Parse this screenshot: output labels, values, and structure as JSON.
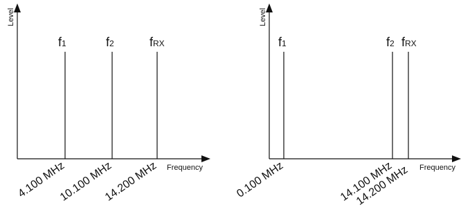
{
  "diagrams": [
    {
      "ylabel": "Level",
      "xlabel": "Frequency",
      "signals": [
        {
          "main": "f",
          "sub": "1"
        },
        {
          "main": "f",
          "sub": "2"
        },
        {
          "main": "f",
          "sub": "RX"
        }
      ],
      "ticks": [
        "4.100 MHz",
        "10.100 MHz",
        "14.200 MHz"
      ]
    },
    {
      "ylabel": "Level",
      "xlabel": "Frequency",
      "signals": [
        {
          "main": "f",
          "sub": "1"
        },
        {
          "main": "f",
          "sub": "2"
        },
        {
          "main": "f",
          "sub": "RX"
        }
      ],
      "ticks": [
        "0.100 MHz",
        "14.100 MHz",
        "14.200 MHz"
      ]
    }
  ]
}
